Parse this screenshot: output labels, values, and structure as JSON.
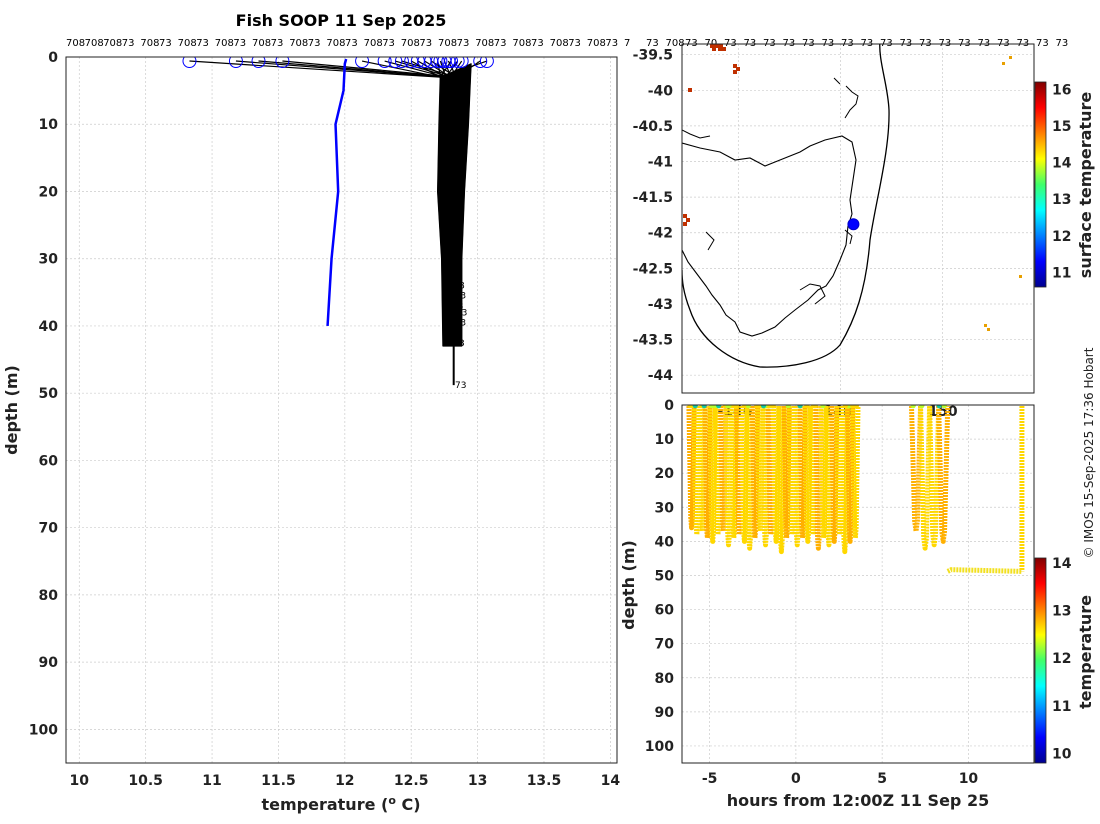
{
  "chart_data": [
    {
      "type": "line",
      "title": "Fish SOOP 11 Sep 2025",
      "xlabel": "temperature (",
      "xlabel_sup": "o",
      "xlabel_end": " C)",
      "ylabel": "depth (m)",
      "xlim": [
        9.9,
        14.05
      ],
      "ylim": [
        0,
        105
      ],
      "xticks": [
        10,
        10.5,
        11,
        11.5,
        12,
        12.5,
        13,
        13.5,
        14
      ],
      "yticks": [
        0,
        10,
        20,
        30,
        40,
        50,
        60,
        70,
        80,
        90,
        100
      ],
      "top_labels": [
        "708",
        "708",
        "708",
        "73",
        "708",
        "73",
        "708",
        "73",
        "708",
        "73",
        "708",
        "73",
        "708",
        "73",
        "708",
        "73",
        "708",
        "73",
        "708",
        "73",
        "708",
        "73",
        "708",
        "73",
        "708",
        "73",
        "708",
        "73",
        "708",
        "73",
        "7"
      ],
      "series": [
        {
          "name": "reference profile",
          "color": "#0000ff",
          "points": [
            [
              12.01,
              0.3
            ],
            [
              12.0,
              1.0
            ],
            [
              11.99,
              5
            ],
            [
              11.93,
              10
            ],
            [
              11.95,
              20
            ],
            [
              11.9,
              30
            ],
            [
              11.87,
              40
            ]
          ]
        },
        {
          "name": "profile envelope left",
          "color": "#000000",
          "points": [
            [
              12.72,
              3
            ],
            [
              12.71,
              10
            ],
            [
              12.7,
              20
            ],
            [
              12.73,
              30
            ],
            [
              12.74,
              43
            ]
          ]
        },
        {
          "name": "profile envelope right",
          "color": "#000000",
          "points": [
            [
              12.95,
              1
            ],
            [
              12.93,
              10
            ],
            [
              12.9,
              20
            ],
            [
              12.88,
              30
            ],
            [
              12.88,
              43
            ]
          ]
        }
      ],
      "surface_points": [
        10.83,
        11.18,
        11.35,
        11.53,
        12.13,
        12.3,
        12.38,
        12.43,
        12.5,
        12.55,
        12.6,
        12.65,
        12.7,
        12.72,
        12.75,
        12.78,
        12.8,
        12.85,
        12.88,
        13.02,
        13.07
      ],
      "bottom_markers": [
        {
          "t": 12.86,
          "d": 34,
          "label": "8"
        },
        {
          "t": 12.87,
          "d": 35.5,
          "label": "3"
        },
        {
          "t": 12.85,
          "d": 37,
          "label": "8"
        },
        {
          "t": 12.88,
          "d": 38,
          "label": "3"
        },
        {
          "t": 12.87,
          "d": 39.5,
          "label": "3"
        },
        {
          "t": 12.84,
          "d": 41,
          "label": "8"
        },
        {
          "t": 12.86,
          "d": 42.5,
          "label": "3"
        },
        {
          "t": 12.83,
          "d": 48.8,
          "label": "73"
        }
      ]
    },
    {
      "type": "map",
      "ylim": [
        -44.25,
        -39.35
      ],
      "yticks": [
        -39.5,
        -40,
        -40.5,
        -41,
        -41.5,
        -42,
        -42.5,
        -43,
        -43.5,
        -44
      ],
      "yticklabels": [
        "-39.5",
        "-40",
        "-40.5",
        "-41",
        "-41.5",
        "-42",
        "-42.5",
        "-43",
        "-43.5",
        "-44"
      ],
      "top_labels": [
        "73",
        "708",
        "73",
        "70",
        "73",
        "73",
        "73",
        "73",
        "73",
        "73",
        "73",
        "73",
        "73",
        "73",
        "73",
        "73",
        "73",
        "73",
        "73",
        "73",
        "73",
        "73"
      ],
      "colorbar": {
        "label": "surface temperature",
        "range": [
          10.6,
          16.2
        ],
        "ticks": [
          11,
          12,
          13,
          14,
          15,
          16
        ]
      },
      "vessel": {
        "lon_frac": 0.487,
        "lat": -41.88,
        "color": "#0000ff"
      }
    },
    {
      "type": "scatter",
      "xlabel": "hours from 12:00Z 11 Sep 25",
      "ylabel": "depth (m)",
      "xlim": [
        -6.6,
        13.8
      ],
      "ylim": [
        0,
        105
      ],
      "xticks": [
        -5,
        0,
        5,
        10
      ],
      "xticklabels": [
        "-5",
        "0",
        "5",
        "10"
      ],
      "yticks": [
        0,
        10,
        20,
        30,
        40,
        50,
        60,
        70,
        80,
        90,
        100
      ],
      "top_labels": [
        "-146",
        "148",
        "150"
      ],
      "colorbar": {
        "label": "temperature",
        "range": [
          9.8,
          14.1
        ],
        "ticks": [
          10,
          11,
          12,
          13,
          14
        ]
      },
      "segments": [
        {
          "start": -6.2,
          "end": 3.6,
          "bottoms": [
            36,
            38,
            37,
            39,
            40,
            38,
            37,
            41,
            39,
            38,
            40,
            42,
            39,
            37,
            41,
            38,
            40,
            43,
            39,
            38,
            41,
            39,
            40,
            38,
            42,
            39,
            41,
            40,
            38,
            43,
            40,
            39
          ]
        },
        {
          "start": 6.7,
          "end": 8.8,
          "bottoms": [
            37,
            42,
            41,
            40
          ]
        }
      ],
      "bottom_run": {
        "start": 8.8,
        "end": 13.1,
        "depth": 48.8
      },
      "final_cast": {
        "t": 13.1,
        "depth": 48.8
      }
    }
  ],
  "watermark": "© IMOS 15-Sep-2025 17:36 Hobart"
}
